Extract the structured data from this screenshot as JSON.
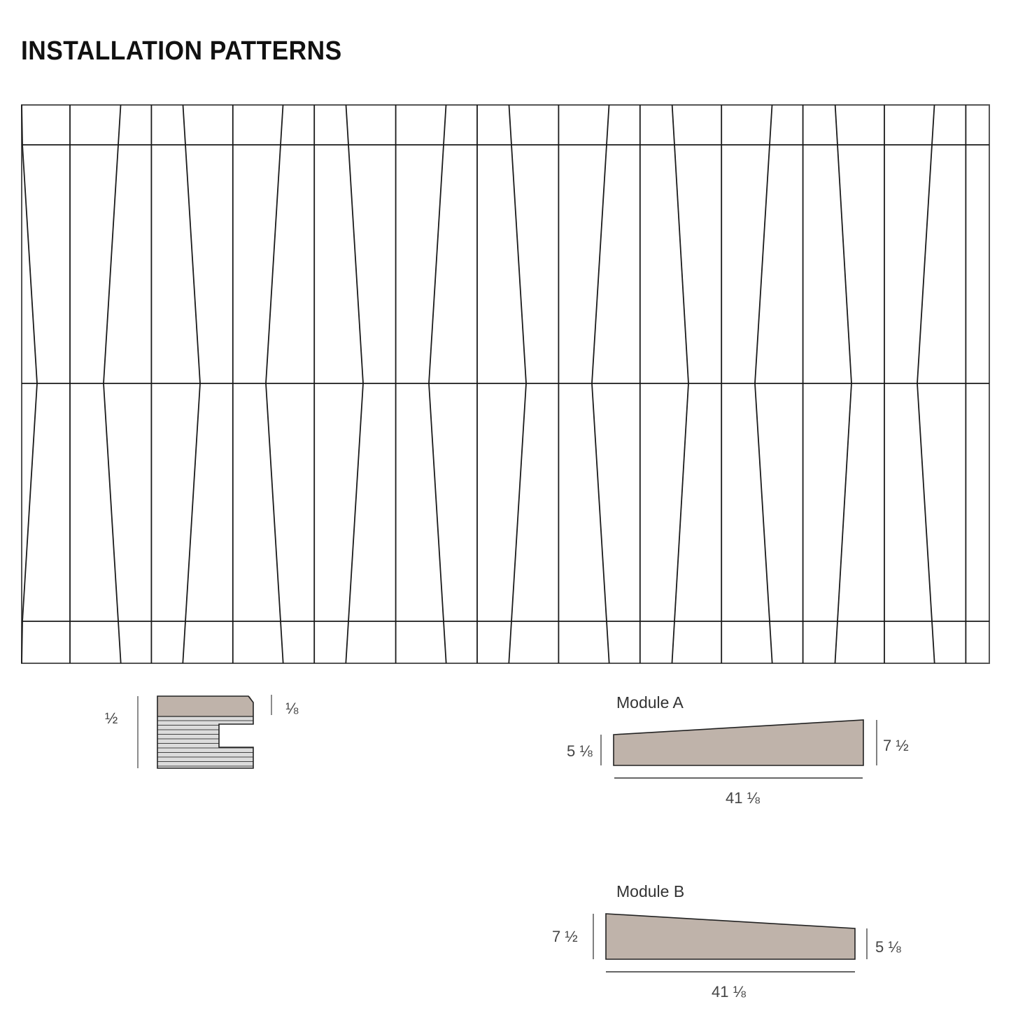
{
  "title": "INSTALLATION PATTERNS",
  "colors": {
    "line": "#1a1a1a",
    "module_fill": "#bfb3aa",
    "stripe_fill": "#dcdcdc"
  },
  "profile": {
    "thickness_label": "½",
    "chamfer_label": "⅛"
  },
  "module_a": {
    "name": "Module A",
    "left_height": "5 ⅛",
    "right_height": "7 ½",
    "length": "41 ⅛"
  },
  "module_b": {
    "name": "Module B",
    "left_height": "7 ½",
    "right_height": "5 ⅛",
    "length": "41 ⅛"
  }
}
